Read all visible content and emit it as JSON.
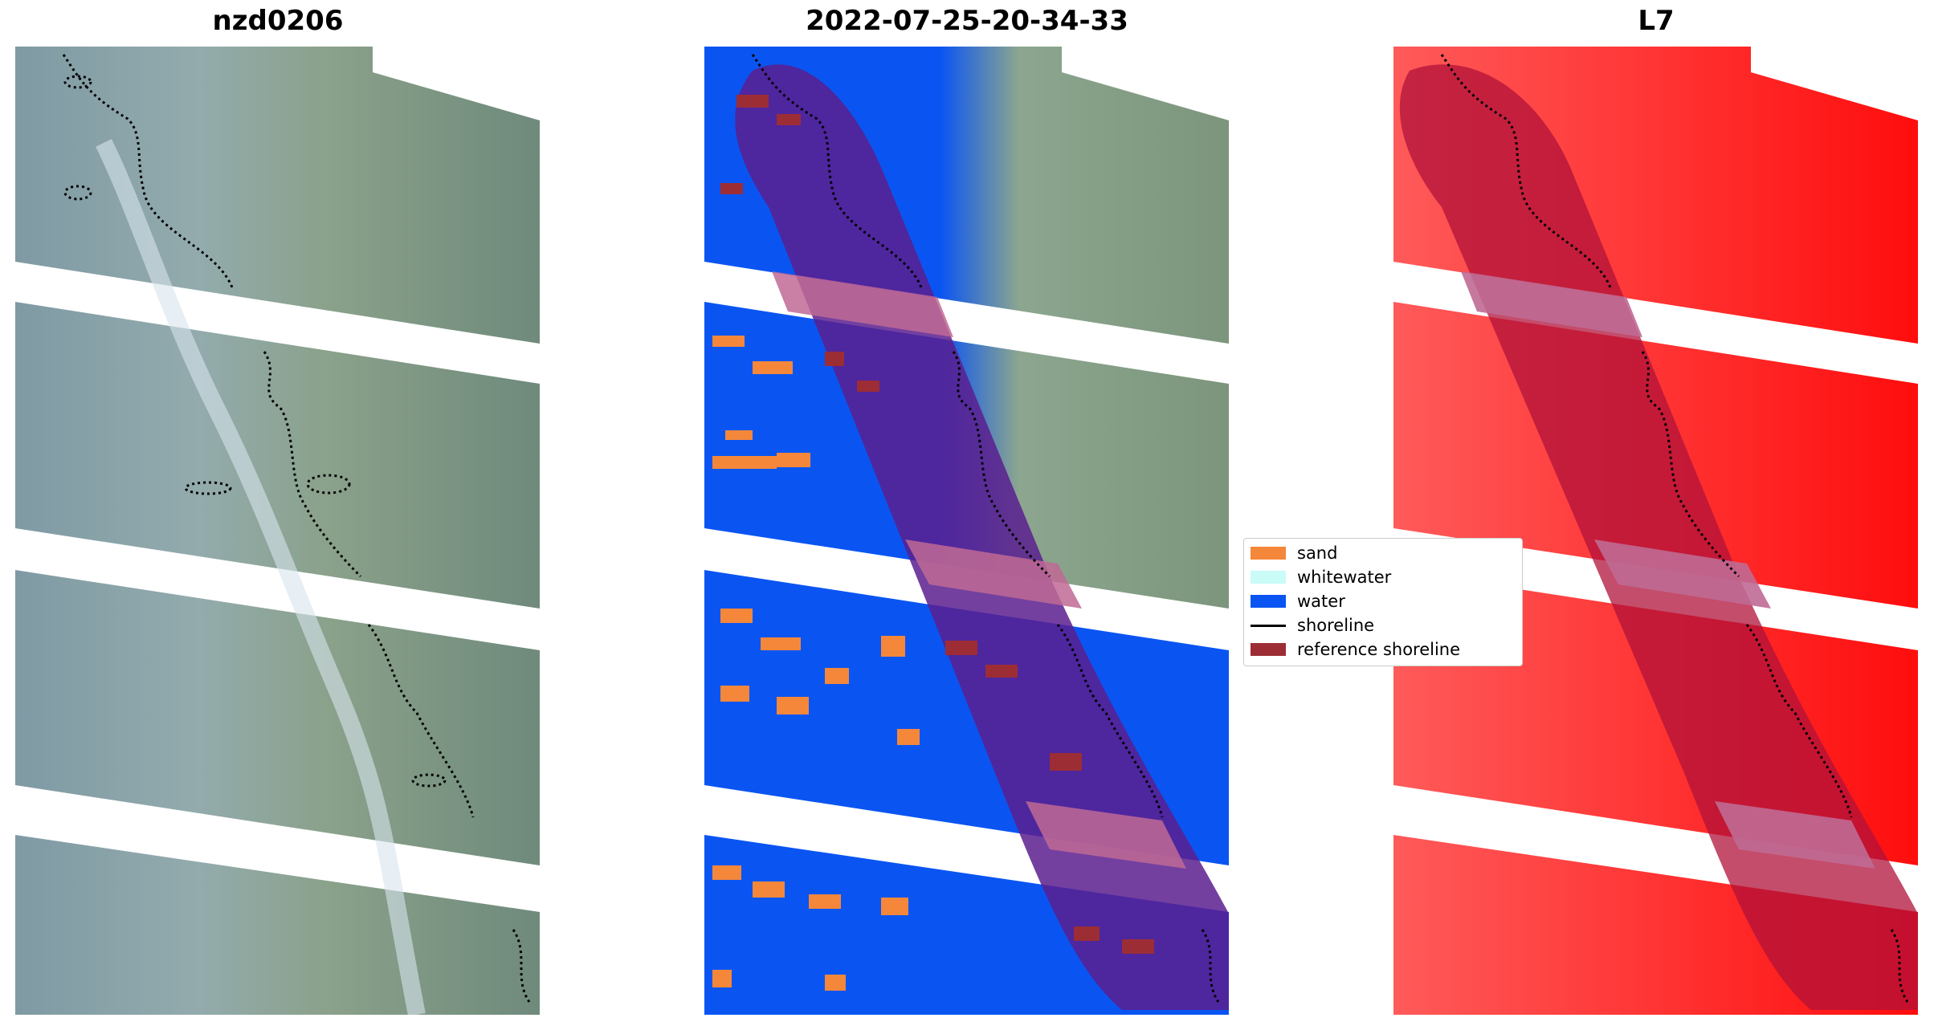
{
  "panels": [
    {
      "title": "nzd0206"
    },
    {
      "title": "2022-07-25-20-34-33"
    },
    {
      "title": "L7"
    }
  ],
  "legend": {
    "items": [
      {
        "label": "sand",
        "color": "#f5873a"
      },
      {
        "label": "whitewater",
        "color": "#c9fbf7"
      },
      {
        "label": "water",
        "color": "#0a55f2"
      },
      {
        "label": "shoreline",
        "color": "#000000"
      },
      {
        "label": "reference shoreline",
        "color": "#9c2d35"
      }
    ]
  },
  "colors": {
    "rgb_base": "#8aa3a6",
    "rgb_land": "#7e9678",
    "water_class": "#0a55f2",
    "sand_class": "#f5873a",
    "buffer_overlay": "#5b1e8f",
    "l7_red": "#ff2020",
    "l7_overlay": "#b0123a",
    "band_gap_overlay": "#c06a94"
  }
}
